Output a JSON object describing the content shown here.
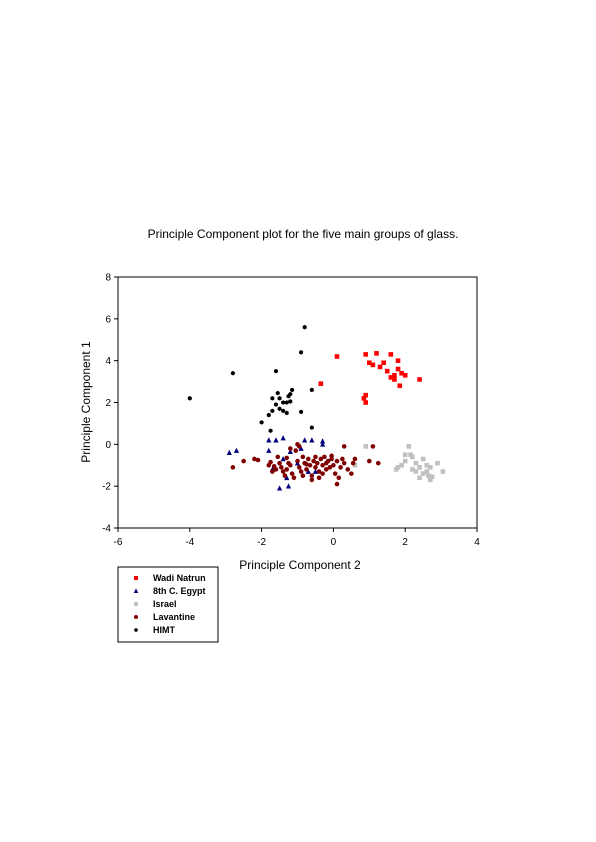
{
  "chart_data": {
    "type": "scatter",
    "title": "Principle Component plot for the five main groups of glass.",
    "xlabel": "Principle Component 2",
    "ylabel": "Principle Component 1",
    "xlim": [
      -6,
      4
    ],
    "ylim": [
      -4,
      8
    ],
    "xticks": [
      "-6",
      "-4",
      "-2",
      "0",
      "2",
      "4"
    ],
    "yticks": [
      "-4",
      "-2",
      "0",
      "2",
      "4",
      "6",
      "8"
    ],
    "grid": false,
    "legend_position": "bottom-left",
    "series": [
      {
        "name": "Wadi Natrun",
        "color": "#ff0000",
        "marker": "square",
        "points": [
          [
            0.1,
            4.2
          ],
          [
            0.9,
            4.3
          ],
          [
            1.2,
            4.35
          ],
          [
            1.6,
            4.3
          ],
          [
            1.8,
            4.0
          ],
          [
            1.4,
            3.9
          ],
          [
            1.0,
            3.9
          ],
          [
            1.3,
            3.7
          ],
          [
            1.5,
            3.5
          ],
          [
            1.6,
            3.2
          ],
          [
            1.7,
            3.3
          ],
          [
            1.8,
            3.6
          ],
          [
            1.9,
            3.4
          ],
          [
            2.0,
            3.3
          ],
          [
            1.7,
            3.1
          ],
          [
            2.4,
            3.1
          ],
          [
            1.85,
            2.8
          ],
          [
            -0.35,
            2.9
          ],
          [
            0.9,
            2.35
          ],
          [
            0.85,
            2.2
          ],
          [
            0.9,
            2.0
          ],
          [
            1.1,
            3.8
          ]
        ]
      },
      {
        "name": "8th C. Egypt",
        "color": "#00007f",
        "marker": "triangle",
        "points": [
          [
            -2.9,
            -0.4
          ],
          [
            -2.7,
            -0.3
          ],
          [
            -1.8,
            0.2
          ],
          [
            -1.6,
            0.2
          ],
          [
            -1.4,
            0.3
          ],
          [
            -1.8,
            -0.3
          ],
          [
            -1.4,
            -0.7
          ],
          [
            -1.2,
            -0.35
          ],
          [
            -0.9,
            -0.2
          ],
          [
            -0.8,
            0.2
          ],
          [
            -0.6,
            0.2
          ],
          [
            -0.3,
            0.0
          ],
          [
            -0.5,
            -1.3
          ],
          [
            -0.7,
            -1.3
          ],
          [
            -1.3,
            -1.6
          ],
          [
            -1.5,
            -2.1
          ],
          [
            -1.25,
            -2.0
          ],
          [
            -1.0,
            -0.9
          ],
          [
            -0.3,
            0.15
          ],
          [
            -1.7,
            -1.2
          ]
        ]
      },
      {
        "name": "Israel",
        "color": "#c0c0c0",
        "marker": "square",
        "points": [
          [
            0.9,
            -0.1
          ],
          [
            2.0,
            -0.5
          ],
          [
            2.1,
            -0.1
          ],
          [
            2.15,
            -0.5
          ],
          [
            2.2,
            -0.6
          ],
          [
            2.0,
            -0.8
          ],
          [
            1.9,
            -1.0
          ],
          [
            1.8,
            -1.1
          ],
          [
            1.75,
            -1.2
          ],
          [
            2.3,
            -0.9
          ],
          [
            2.4,
            -1.1
          ],
          [
            2.5,
            -0.7
          ],
          [
            2.6,
            -1.0
          ],
          [
            2.7,
            -1.1
          ],
          [
            2.6,
            -1.3
          ],
          [
            2.65,
            -1.5
          ],
          [
            2.7,
            -1.7
          ],
          [
            2.5,
            -1.4
          ],
          [
            2.3,
            -1.3
          ],
          [
            2.2,
            -1.2
          ],
          [
            2.9,
            -0.9
          ],
          [
            3.05,
            -1.3
          ],
          [
            2.75,
            -1.55
          ],
          [
            2.4,
            -1.6
          ],
          [
            0.6,
            -1.0
          ]
        ]
      },
      {
        "name": "Lavantine",
        "color": "#800000",
        "marker": "circle",
        "points": [
          [
            -2.8,
            -1.1
          ],
          [
            -2.5,
            -0.8
          ],
          [
            -2.2,
            -0.7
          ],
          [
            -2.1,
            -0.75
          ],
          [
            -1.8,
            -1.0
          ],
          [
            -1.7,
            -1.3
          ],
          [
            -1.6,
            -1.2
          ],
          [
            -1.5,
            -0.9
          ],
          [
            -1.45,
            -1.1
          ],
          [
            -1.4,
            -1.3
          ],
          [
            -1.35,
            -1.5
          ],
          [
            -1.3,
            -1.2
          ],
          [
            -1.25,
            -0.9
          ],
          [
            -1.2,
            -1.0
          ],
          [
            -1.15,
            -1.4
          ],
          [
            -1.1,
            -1.6
          ],
          [
            -1.05,
            -0.3
          ],
          [
            -1.0,
            -0.8
          ],
          [
            -0.95,
            -1.1
          ],
          [
            -0.9,
            -1.3
          ],
          [
            -0.85,
            -0.6
          ],
          [
            -0.8,
            -0.9
          ],
          [
            -0.75,
            -1.2
          ],
          [
            -0.7,
            -0.7
          ],
          [
            -0.65,
            -1.0
          ],
          [
            -0.6,
            -1.5
          ],
          [
            -0.55,
            -0.8
          ],
          [
            -0.5,
            -1.1
          ],
          [
            -0.45,
            -0.9
          ],
          [
            -0.4,
            -1.3
          ],
          [
            -0.35,
            -0.7
          ],
          [
            -0.3,
            -1.0
          ],
          [
            -0.25,
            -0.6
          ],
          [
            -0.2,
            -1.2
          ],
          [
            -0.15,
            -0.8
          ],
          [
            -0.1,
            -1.1
          ],
          [
            -0.05,
            -0.7
          ],
          [
            0.0,
            -1.0
          ],
          [
            0.05,
            -1.4
          ],
          [
            0.1,
            -0.8
          ],
          [
            0.15,
            -1.6
          ],
          [
            0.2,
            -1.1
          ],
          [
            0.25,
            -0.7
          ],
          [
            0.3,
            -0.9
          ],
          [
            0.4,
            -1.2
          ],
          [
            0.5,
            -1.4
          ],
          [
            0.55,
            -0.9
          ],
          [
            0.6,
            -0.7
          ],
          [
            0.3,
            -0.1
          ],
          [
            -0.05,
            -0.55
          ],
          [
            -1.0,
            0.0
          ],
          [
            -0.95,
            -0.1
          ],
          [
            -1.2,
            -0.2
          ],
          [
            -1.3,
            -0.65
          ],
          [
            -1.55,
            -0.6
          ],
          [
            -0.85,
            -1.5
          ],
          [
            -0.6,
            -1.7
          ],
          [
            0.1,
            -1.9
          ],
          [
            -0.3,
            -1.4
          ],
          [
            1.0,
            -0.8
          ],
          [
            1.25,
            -0.9
          ],
          [
            1.1,
            -0.1
          ],
          [
            -0.75,
            -0.95
          ],
          [
            -0.5,
            -0.6
          ],
          [
            -0.2,
            -0.9
          ],
          [
            -0.4,
            -1.6
          ],
          [
            -1.75,
            -0.85
          ],
          [
            -1.65,
            -1.05
          ]
        ]
      },
      {
        "name": "HIMT",
        "color": "#000000",
        "marker": "hexagon",
        "points": [
          [
            -0.8,
            5.6
          ],
          [
            -0.9,
            4.4
          ],
          [
            -1.6,
            3.5
          ],
          [
            -2.8,
            3.4
          ],
          [
            -4.0,
            2.2
          ],
          [
            -1.4,
            1.6
          ],
          [
            -1.5,
            2.2
          ],
          [
            -1.3,
            2.0
          ],
          [
            -1.2,
            2.4
          ],
          [
            -1.15,
            2.6
          ],
          [
            -1.6,
            1.9
          ],
          [
            -1.7,
            1.6
          ],
          [
            -1.8,
            1.4
          ],
          [
            -1.7,
            2.2
          ],
          [
            -1.5,
            1.7
          ],
          [
            -1.3,
            1.5
          ],
          [
            -1.4,
            2.0
          ],
          [
            -1.25,
            2.3
          ],
          [
            -0.9,
            1.55
          ],
          [
            -0.6,
            0.8
          ],
          [
            -2.0,
            1.05
          ],
          [
            -1.75,
            0.65
          ],
          [
            -1.2,
            2.05
          ],
          [
            -0.6,
            2.6
          ],
          [
            -1.55,
            2.45
          ]
        ]
      }
    ]
  }
}
